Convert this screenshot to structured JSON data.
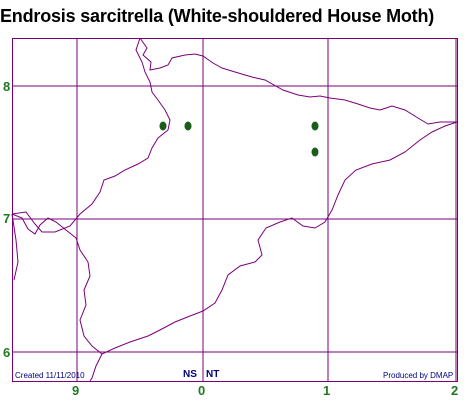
{
  "title": "Endrosis sarcitrella (White-shouldered House Moth)",
  "y_ticks": [
    "8",
    "7",
    "6"
  ],
  "x_ticks": [
    "9",
    "0",
    "1",
    "2"
  ],
  "grid_labels": {
    "left": "NS",
    "right": "NT"
  },
  "footer": {
    "created": "Created 11/11/2010",
    "produced": "Produced by DMAP"
  },
  "colors": {
    "grid": "#7a007a",
    "coast": "#7a007a",
    "dot": "#1a5c1a",
    "tick_text": "#1f7a1f",
    "footer_text": "#00007a"
  }
}
